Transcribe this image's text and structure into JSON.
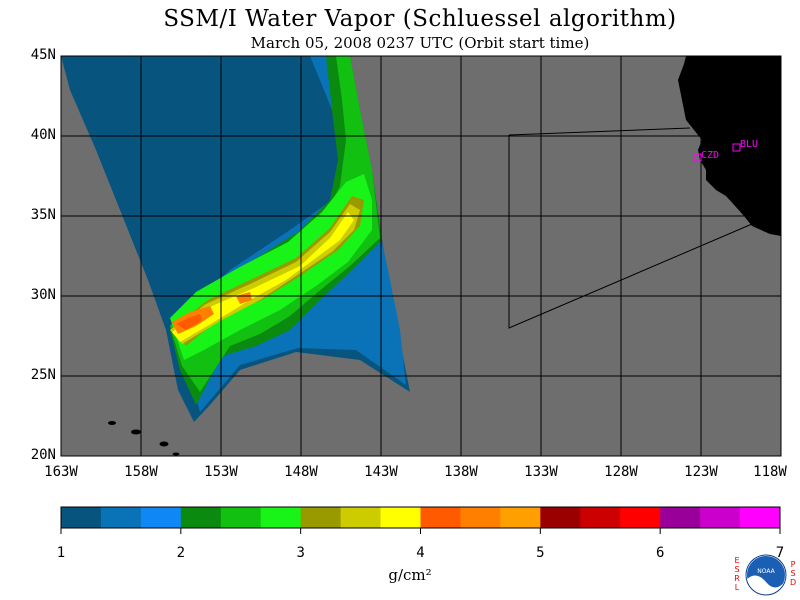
{
  "title": "SSM/I Water Vapor (Schluessel algorithm)",
  "subtitle": "March 05, 2008  0237 UTC  (Orbit start time)",
  "map": {
    "lat_labels": [
      "45N",
      "40N",
      "35N",
      "30N",
      "25N",
      "20N"
    ],
    "lon_labels": [
      "163W",
      "158W",
      "153W",
      "148W",
      "143W",
      "138W",
      "133W",
      "128W",
      "123W",
      "118W"
    ],
    "background_color": "#6e6e6e",
    "land_color": "#000000",
    "grid_color": "#000000",
    "stations": [
      {
        "label": "CZD",
        "color": "#ff00ff"
      },
      {
        "label": "BLU",
        "color": "#ff00ff"
      }
    ]
  },
  "colorbar": {
    "ticks": [
      "1",
      "2",
      "3",
      "4",
      "5",
      "6",
      "7"
    ],
    "unit": "g/cm²",
    "colors": [
      "#07557f",
      "#0a73b7",
      "#0f88f5",
      "#0a8a0f",
      "#12c012",
      "#18f418",
      "#999900",
      "#cccc00",
      "#ffff00",
      "#ff5a00",
      "#ff7f00",
      "#ffa000",
      "#9b0000",
      "#cc0000",
      "#ff0000",
      "#990099",
      "#cc00cc",
      "#ff00ff"
    ]
  },
  "logo": {
    "left_letters": "ESRL",
    "right_letters": "PSD",
    "emblem_text": "NOAA"
  },
  "chart_data": {
    "type": "heatmap",
    "title": "SSM/I Water Vapor (Schluessel algorithm)",
    "subtitle": "March 05, 2008  0237 UTC  (Orbit start time)",
    "xlabel": "",
    "ylabel": "",
    "x_ticks": [
      "163W",
      "158W",
      "153W",
      "148W",
      "143W",
      "138W",
      "133W",
      "128W",
      "123W",
      "118W"
    ],
    "y_ticks": [
      "45N",
      "40N",
      "35N",
      "30N",
      "25N",
      "20N"
    ],
    "xlim_deg_west": [
      163,
      118
    ],
    "ylim_deg_north": [
      20,
      45
    ],
    "colorbar_range": [
      1,
      7
    ],
    "colorbar_unit": "g/cm²",
    "grid": true,
    "swath_band_axis": {
      "description_values_g_cm2": [
        {
          "lon_W": 156.5,
          "lat_N": 27.5,
          "value": 4.5
        },
        {
          "lon_W": 148.5,
          "lat_N": 31.2,
          "value": 3.8
        },
        {
          "lon_W": 145.5,
          "lat_N": 34.0,
          "value": 3.7
        },
        {
          "lon_W": 158.0,
          "lat_N": 42.0,
          "value": 1.2
        },
        {
          "lon_W": 143.0,
          "lat_N": 26.0,
          "value": 1.6
        }
      ]
    }
  }
}
